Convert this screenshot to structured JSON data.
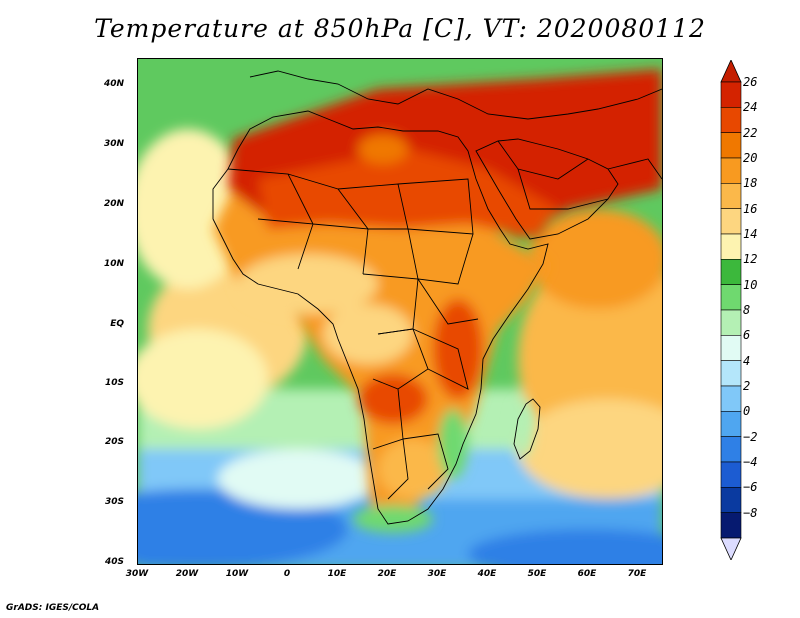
{
  "title": "Temperature at 850hPa [C], VT: 2020080112",
  "footer": "GrADS: IGES/COLA",
  "map": {
    "lat_ticks": [
      "40N",
      "30N",
      "20N",
      "10N",
      "EQ",
      "10S",
      "20S",
      "30S",
      "40S"
    ],
    "lon_ticks": [
      "30W",
      "20W",
      "10W",
      "0",
      "10E",
      "20E",
      "30E",
      "40E",
      "50E",
      "60E",
      "70E"
    ]
  },
  "colorbar": {
    "labels": [
      "26",
      "24",
      "22",
      "20",
      "18",
      "16",
      "14",
      "12",
      "10",
      "8",
      "6",
      "4",
      "2",
      "0",
      "−2",
      "−4",
      "−6",
      "−8"
    ],
    "colors": [
      "#d42300",
      "#e84800",
      "#f07800",
      "#f89a20",
      "#fbb84a",
      "#fdd680",
      "#fdf3b0",
      "#3cb83c",
      "#6fd96f",
      "#b4f0b4",
      "#e1fbf4",
      "#b4e6fa",
      "#80c8f8",
      "#4fa6f0",
      "#2f80e6",
      "#1c5cd2",
      "#0a3aa0",
      "#061a70"
    ],
    "top_arrow_color": "#c41e00",
    "bottom_arrow_color": "#dcdcff"
  }
}
